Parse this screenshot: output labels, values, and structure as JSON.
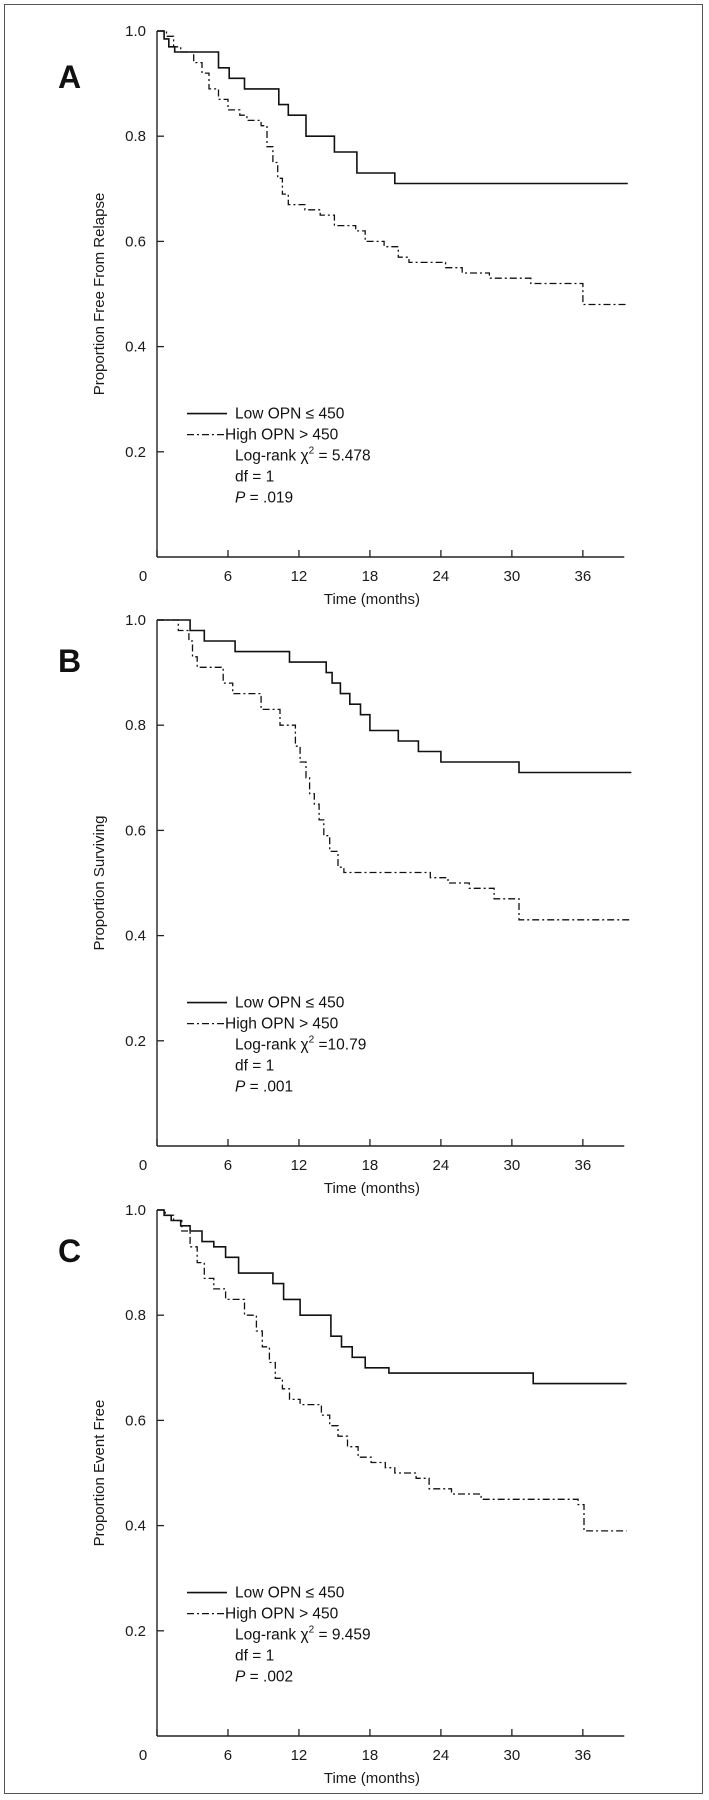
{
  "chart_data": [
    {
      "type": "line",
      "panel": "A",
      "xlabel": "Time (months)",
      "ylabel": "Proportion Free From Relapse",
      "xlim": [
        0,
        41
      ],
      "ylim": [
        0,
        1.0
      ],
      "xticks": [
        "0",
        "6",
        "12",
        "18",
        "24",
        "30",
        "36"
      ],
      "yticks": [
        "0.2",
        "0.4",
        "0.6",
        "0.8",
        "1.0"
      ],
      "series": [
        {
          "name": "Low OPN ≤ 450",
          "style": "solid",
          "x": [
            0,
            0.6,
            1.0,
            1.5,
            2.2,
            5.2,
            6.1,
            7.4,
            10.3,
            11.1,
            12.6,
            15.0,
            16.9,
            20.1,
            39.8
          ],
          "y": [
            1.0,
            0.985,
            0.97,
            0.96,
            0.96,
            0.93,
            0.91,
            0.89,
            0.86,
            0.84,
            0.8,
            0.77,
            0.73,
            0.71,
            0.71
          ]
        },
        {
          "name": "High OPN > 450",
          "style": "dashdot",
          "x": [
            0,
            0.8,
            1.4,
            2.0,
            3.1,
            3.8,
            4.4,
            5.2,
            6.0,
            7.0,
            7.6,
            8.8,
            9.3,
            9.8,
            10.2,
            10.6,
            11.1,
            12.5,
            13.8,
            15.0,
            16.8,
            17.6,
            19.2,
            20.4,
            21.3,
            24.4,
            25.8,
            26.8,
            28.1,
            31.6,
            36.0,
            37.0,
            39.8
          ],
          "y": [
            1.0,
            0.99,
            0.97,
            0.96,
            0.94,
            0.92,
            0.89,
            0.87,
            0.85,
            0.84,
            0.83,
            0.82,
            0.78,
            0.75,
            0.72,
            0.69,
            0.67,
            0.66,
            0.65,
            0.63,
            0.62,
            0.6,
            0.59,
            0.57,
            0.56,
            0.55,
            0.54,
            0.54,
            0.53,
            0.52,
            0.48,
            0.48,
            0.48
          ]
        }
      ],
      "legend": {
        "series_labels": [
          "Low OPN ≤ 450",
          "High OPN > 450"
        ],
        "logrank": "Log-rank χ",
        "logrank_sup": "2",
        "logrank_value": " = 5.478",
        "df": "df = 1",
        "p_label": "P",
        "p_value": " = .019"
      }
    },
    {
      "type": "line",
      "panel": "B",
      "xlabel": "Time (months)",
      "ylabel": "Proportion Surviving",
      "xlim": [
        0,
        41
      ],
      "ylim": [
        0,
        1.0
      ],
      "xticks": [
        "0",
        "6",
        "12",
        "18",
        "24",
        "30",
        "36"
      ],
      "yticks": [
        "0.2",
        "0.4",
        "0.6",
        "0.8",
        "1.0"
      ],
      "series": [
        {
          "name": "Low OPN ≤ 450",
          "style": "solid",
          "x": [
            0,
            2.8,
            4.0,
            6.6,
            11.2,
            14.3,
            14.8,
            15.5,
            16.3,
            17.2,
            18.0,
            20.4,
            22.1,
            24.0,
            30.6,
            40.1
          ],
          "y": [
            1.0,
            0.98,
            0.96,
            0.94,
            0.92,
            0.9,
            0.88,
            0.86,
            0.84,
            0.82,
            0.79,
            0.77,
            0.75,
            0.73,
            0.71,
            0.71
          ]
        },
        {
          "name": "High OPN > 450",
          "style": "dashdot",
          "x": [
            0,
            1.8,
            2.7,
            3.0,
            3.4,
            5.6,
            6.4,
            8.8,
            10.4,
            11.7,
            12.1,
            12.6,
            12.9,
            13.3,
            13.7,
            14.1,
            14.6,
            15.3,
            15.8,
            23.1,
            24.6,
            26.4,
            28.5,
            30.6,
            40.1
          ],
          "y": [
            1.0,
            0.98,
            0.96,
            0.93,
            0.91,
            0.88,
            0.86,
            0.83,
            0.8,
            0.76,
            0.73,
            0.7,
            0.67,
            0.65,
            0.62,
            0.59,
            0.56,
            0.53,
            0.52,
            0.51,
            0.5,
            0.49,
            0.47,
            0.43,
            0.43
          ]
        }
      ],
      "legend": {
        "series_labels": [
          "Low OPN ≤ 450",
          "High OPN > 450"
        ],
        "logrank": "Log-rank χ",
        "logrank_sup": "2",
        "logrank_value": " =10.79",
        "df": "df = 1",
        "p_label": "P",
        "p_value": " = .001"
      }
    },
    {
      "type": "line",
      "panel": "C",
      "xlabel": "Time (months)",
      "ylabel": "Proportion Event Free",
      "xlim": [
        0,
        41
      ],
      "ylim": [
        0,
        1.0
      ],
      "xticks": [
        "0",
        "6",
        "12",
        "18",
        "24",
        "30",
        "36"
      ],
      "yticks": [
        "0.2",
        "0.4",
        "0.6",
        "0.8",
        "1.0"
      ],
      "series": [
        {
          "name": "Low OPN ≤ 450",
          "style": "solid",
          "x": [
            0,
            0.6,
            1.2,
            2.0,
            2.8,
            3.8,
            4.8,
            5.8,
            6.9,
            9.8,
            10.7,
            12.1,
            14.7,
            15.6,
            16.5,
            17.6,
            19.6,
            31.8,
            39.7
          ],
          "y": [
            1.0,
            0.99,
            0.98,
            0.97,
            0.96,
            0.94,
            0.93,
            0.91,
            0.88,
            0.86,
            0.83,
            0.8,
            0.76,
            0.74,
            0.72,
            0.7,
            0.69,
            0.67,
            0.67
          ]
        },
        {
          "name": "High OPN > 450",
          "style": "dashdot",
          "x": [
            0,
            0.7,
            1.4,
            2.1,
            2.8,
            3.4,
            4.0,
            4.8,
            5.8,
            7.4,
            8.4,
            8.9,
            9.5,
            10.0,
            10.6,
            11.2,
            12.1,
            13.9,
            14.6,
            15.3,
            16.1,
            17.0,
            18.1,
            19.3,
            20.1,
            21.9,
            23.0,
            24.9,
            27.4,
            29.4,
            31.2,
            35.6,
            36.1,
            39.7
          ],
          "y": [
            1.0,
            0.99,
            0.98,
            0.96,
            0.93,
            0.9,
            0.87,
            0.85,
            0.83,
            0.8,
            0.77,
            0.74,
            0.71,
            0.68,
            0.66,
            0.64,
            0.63,
            0.61,
            0.59,
            0.57,
            0.55,
            0.53,
            0.52,
            0.51,
            0.5,
            0.49,
            0.47,
            0.46,
            0.45,
            0.45,
            0.45,
            0.44,
            0.39,
            0.39
          ]
        }
      ],
      "legend": {
        "series_labels": [
          "Low OPN ≤ 450",
          "High OPN > 450"
        ],
        "logrank": "Log-rank χ",
        "logrank_sup": "2",
        "logrank_value": " = 9.459",
        "df": "df = 1",
        "p_label": "P",
        "p_value": " = .002"
      }
    }
  ]
}
